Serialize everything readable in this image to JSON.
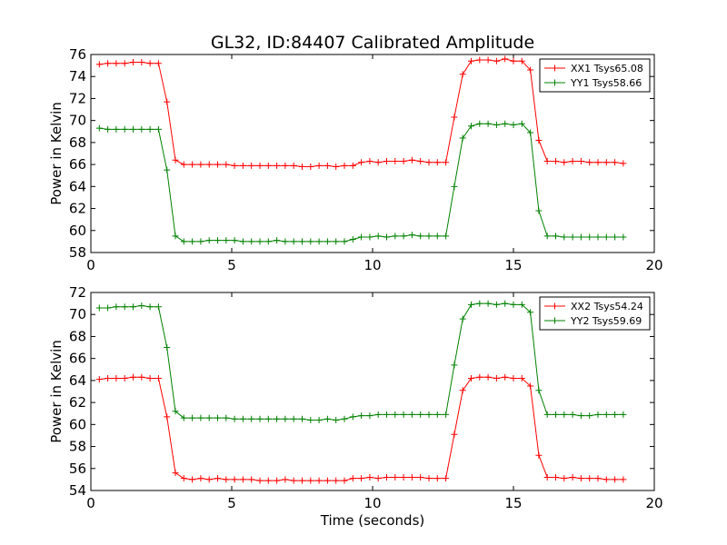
{
  "title": "GL32, ID:84407 Calibrated Amplitude",
  "chart_data": [
    {
      "type": "line",
      "ylabel": "Power in Kelvin",
      "xlabel": "",
      "xlim": [
        0,
        20
      ],
      "ylim": [
        58,
        76
      ],
      "xticks": [
        "0",
        "5",
        "10",
        "15",
        "20"
      ],
      "yticks": [
        "58",
        "60",
        "62",
        "64",
        "66",
        "68",
        "70",
        "72",
        "74",
        "76"
      ],
      "grid": false,
      "legend_position": "top-right",
      "x": [
        0.3,
        0.6,
        0.9,
        1.2,
        1.5,
        1.8,
        2.1,
        2.4,
        2.7,
        3.0,
        3.3,
        3.6,
        3.9,
        4.2,
        4.5,
        4.8,
        5.1,
        5.4,
        5.7,
        6.0,
        6.3,
        6.6,
        6.9,
        7.2,
        7.5,
        7.8,
        8.1,
        8.4,
        8.7,
        9.0,
        9.3,
        9.6,
        9.9,
        10.2,
        10.5,
        10.8,
        11.1,
        11.4,
        11.7,
        12.0,
        12.3,
        12.6,
        12.9,
        13.2,
        13.5,
        13.8,
        14.1,
        14.4,
        14.7,
        15.0,
        15.3,
        15.6,
        15.9,
        16.2,
        16.5,
        16.8,
        17.1,
        17.4,
        17.7,
        18.0,
        18.3,
        18.6,
        18.9
      ],
      "series": [
        {
          "name": "XX1 Tsys65.08",
          "color": "#ff0000",
          "values": [
            75.1,
            75.2,
            75.2,
            75.2,
            75.3,
            75.3,
            75.2,
            75.2,
            71.7,
            66.4,
            66.0,
            66.0,
            66.0,
            66.0,
            66.0,
            66.0,
            65.9,
            65.9,
            65.9,
            65.9,
            65.9,
            65.9,
            65.9,
            65.9,
            65.8,
            65.8,
            65.9,
            65.9,
            65.8,
            65.9,
            65.9,
            66.2,
            66.3,
            66.2,
            66.3,
            66.3,
            66.3,
            66.4,
            66.3,
            66.2,
            66.2,
            66.2,
            70.3,
            74.2,
            75.4,
            75.5,
            75.5,
            75.4,
            75.6,
            75.4,
            75.4,
            74.6,
            68.2,
            66.3,
            66.3,
            66.2,
            66.3,
            66.3,
            66.2,
            66.2,
            66.2,
            66.2,
            66.1
          ]
        },
        {
          "name": "YY1 Tsys58.66",
          "color": "#008000",
          "values": [
            69.3,
            69.2,
            69.2,
            69.2,
            69.2,
            69.2,
            69.2,
            69.2,
            65.5,
            59.5,
            59.0,
            59.0,
            59.0,
            59.1,
            59.1,
            59.1,
            59.1,
            59.0,
            59.0,
            59.0,
            59.0,
            59.1,
            59.0,
            59.0,
            59.0,
            59.0,
            59.0,
            59.0,
            59.0,
            59.0,
            59.2,
            59.4,
            59.4,
            59.5,
            59.4,
            59.5,
            59.5,
            59.6,
            59.5,
            59.5,
            59.5,
            59.5,
            64.0,
            68.4,
            69.5,
            69.7,
            69.7,
            69.6,
            69.7,
            69.6,
            69.7,
            68.9,
            61.8,
            59.5,
            59.5,
            59.4,
            59.4,
            59.4,
            59.4,
            59.4,
            59.4,
            59.4,
            59.4
          ]
        }
      ]
    },
    {
      "type": "line",
      "ylabel": "Power in Kelvin",
      "xlabel": "Time (seconds)",
      "xlim": [
        0,
        20
      ],
      "ylim": [
        54,
        72
      ],
      "xticks": [
        "0",
        "5",
        "10",
        "15",
        "20"
      ],
      "yticks": [
        "54",
        "56",
        "58",
        "60",
        "62",
        "64",
        "66",
        "68",
        "70",
        "72"
      ],
      "grid": false,
      "legend_position": "top-right",
      "x": [
        0.3,
        0.6,
        0.9,
        1.2,
        1.5,
        1.8,
        2.1,
        2.4,
        2.7,
        3.0,
        3.3,
        3.6,
        3.9,
        4.2,
        4.5,
        4.8,
        5.1,
        5.4,
        5.7,
        6.0,
        6.3,
        6.6,
        6.9,
        7.2,
        7.5,
        7.8,
        8.1,
        8.4,
        8.7,
        9.0,
        9.3,
        9.6,
        9.9,
        10.2,
        10.5,
        10.8,
        11.1,
        11.4,
        11.7,
        12.0,
        12.3,
        12.6,
        12.9,
        13.2,
        13.5,
        13.8,
        14.1,
        14.4,
        14.7,
        15.0,
        15.3,
        15.6,
        15.9,
        16.2,
        16.5,
        16.8,
        17.1,
        17.4,
        17.7,
        18.0,
        18.3,
        18.6,
        18.9
      ],
      "series": [
        {
          "name": "XX2 Tsys54.24",
          "color": "#ff0000",
          "values": [
            64.1,
            64.2,
            64.2,
            64.2,
            64.3,
            64.3,
            64.2,
            64.2,
            60.7,
            55.6,
            55.1,
            55.0,
            55.1,
            55.0,
            55.1,
            55.0,
            55.0,
            55.0,
            55.0,
            54.9,
            54.9,
            54.9,
            55.0,
            54.9,
            54.9,
            54.9,
            54.9,
            54.9,
            54.9,
            54.9,
            55.1,
            55.1,
            55.2,
            55.1,
            55.2,
            55.2,
            55.2,
            55.2,
            55.2,
            55.1,
            55.1,
            55.1,
            59.1,
            63.1,
            64.2,
            64.3,
            64.3,
            64.2,
            64.3,
            64.2,
            64.2,
            63.5,
            57.2,
            55.2,
            55.2,
            55.1,
            55.2,
            55.1,
            55.1,
            55.1,
            55.0,
            55.0,
            55.0
          ]
        },
        {
          "name": "YY2 Tsys59.69",
          "color": "#008000",
          "values": [
            70.6,
            70.6,
            70.7,
            70.7,
            70.7,
            70.8,
            70.7,
            70.7,
            67.0,
            61.2,
            60.6,
            60.6,
            60.6,
            60.6,
            60.6,
            60.6,
            60.5,
            60.5,
            60.5,
            60.5,
            60.5,
            60.5,
            60.5,
            60.5,
            60.5,
            60.4,
            60.4,
            60.5,
            60.4,
            60.5,
            60.7,
            60.8,
            60.8,
            60.9,
            60.9,
            60.9,
            60.9,
            60.9,
            60.9,
            60.9,
            60.9,
            60.9,
            65.4,
            69.6,
            70.9,
            71.0,
            71.0,
            70.9,
            71.0,
            70.9,
            70.9,
            70.2,
            63.1,
            60.9,
            60.9,
            60.9,
            60.9,
            60.8,
            60.8,
            60.9,
            60.9,
            60.9,
            60.9
          ]
        }
      ]
    }
  ]
}
